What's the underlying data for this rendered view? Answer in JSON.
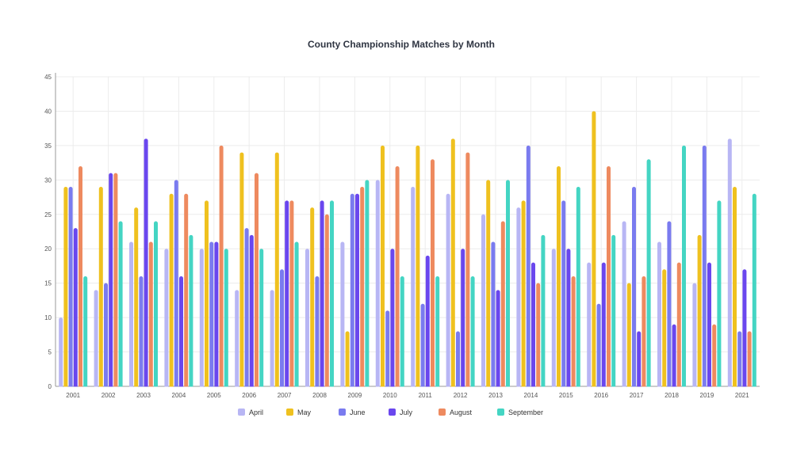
{
  "chart_data": {
    "type": "bar",
    "title": "County Championship Matches by Month",
    "xlabel": "",
    "ylabel": "",
    "ylim": [
      0,
      45
    ],
    "yticks": [
      0,
      5,
      10,
      15,
      20,
      25,
      30,
      35,
      40,
      45
    ],
    "grid": true,
    "legend_position": "bottom",
    "categories": [
      "2001",
      "2002",
      "2003",
      "2004",
      "2005",
      "2006",
      "2007",
      "2008",
      "2009",
      "2010",
      "2011",
      "2012",
      "2013",
      "2014",
      "2015",
      "2016",
      "2017",
      "2018",
      "2019",
      "2021"
    ],
    "series": [
      {
        "name": "April",
        "color": "#b8b6f4",
        "values": [
          10,
          14,
          21,
          20,
          20,
          14,
          14,
          20,
          21,
          30,
          29,
          28,
          25,
          26,
          20,
          18,
          24,
          21,
          15,
          36
        ]
      },
      {
        "name": "May",
        "color": "#efc11f",
        "values": [
          29,
          29,
          26,
          28,
          27,
          34,
          34,
          26,
          8,
          35,
          35,
          36,
          30,
          27,
          32,
          40,
          15,
          17,
          22,
          29
        ]
      },
      {
        "name": "June",
        "color": "#7a7bef",
        "values": [
          29,
          15,
          16,
          30,
          21,
          23,
          17,
          16,
          28,
          11,
          12,
          8,
          21,
          35,
          27,
          12,
          29,
          24,
          35,
          8
        ]
      },
      {
        "name": "July",
        "color": "#6a47ee",
        "values": [
          23,
          31,
          36,
          16,
          21,
          22,
          27,
          27,
          28,
          20,
          19,
          20,
          14,
          18,
          20,
          18,
          8,
          9,
          18,
          17
        ]
      },
      {
        "name": "August",
        "color": "#ee8a5f",
        "values": [
          32,
          31,
          21,
          28,
          35,
          31,
          27,
          25,
          29,
          32,
          33,
          34,
          24,
          15,
          16,
          32,
          16,
          18,
          9,
          8
        ]
      },
      {
        "name": "September",
        "color": "#44d5c3",
        "values": [
          16,
          24,
          24,
          22,
          20,
          20,
          21,
          27,
          30,
          16,
          16,
          16,
          30,
          22,
          29,
          22,
          33,
          35,
          27,
          28
        ]
      }
    ]
  }
}
